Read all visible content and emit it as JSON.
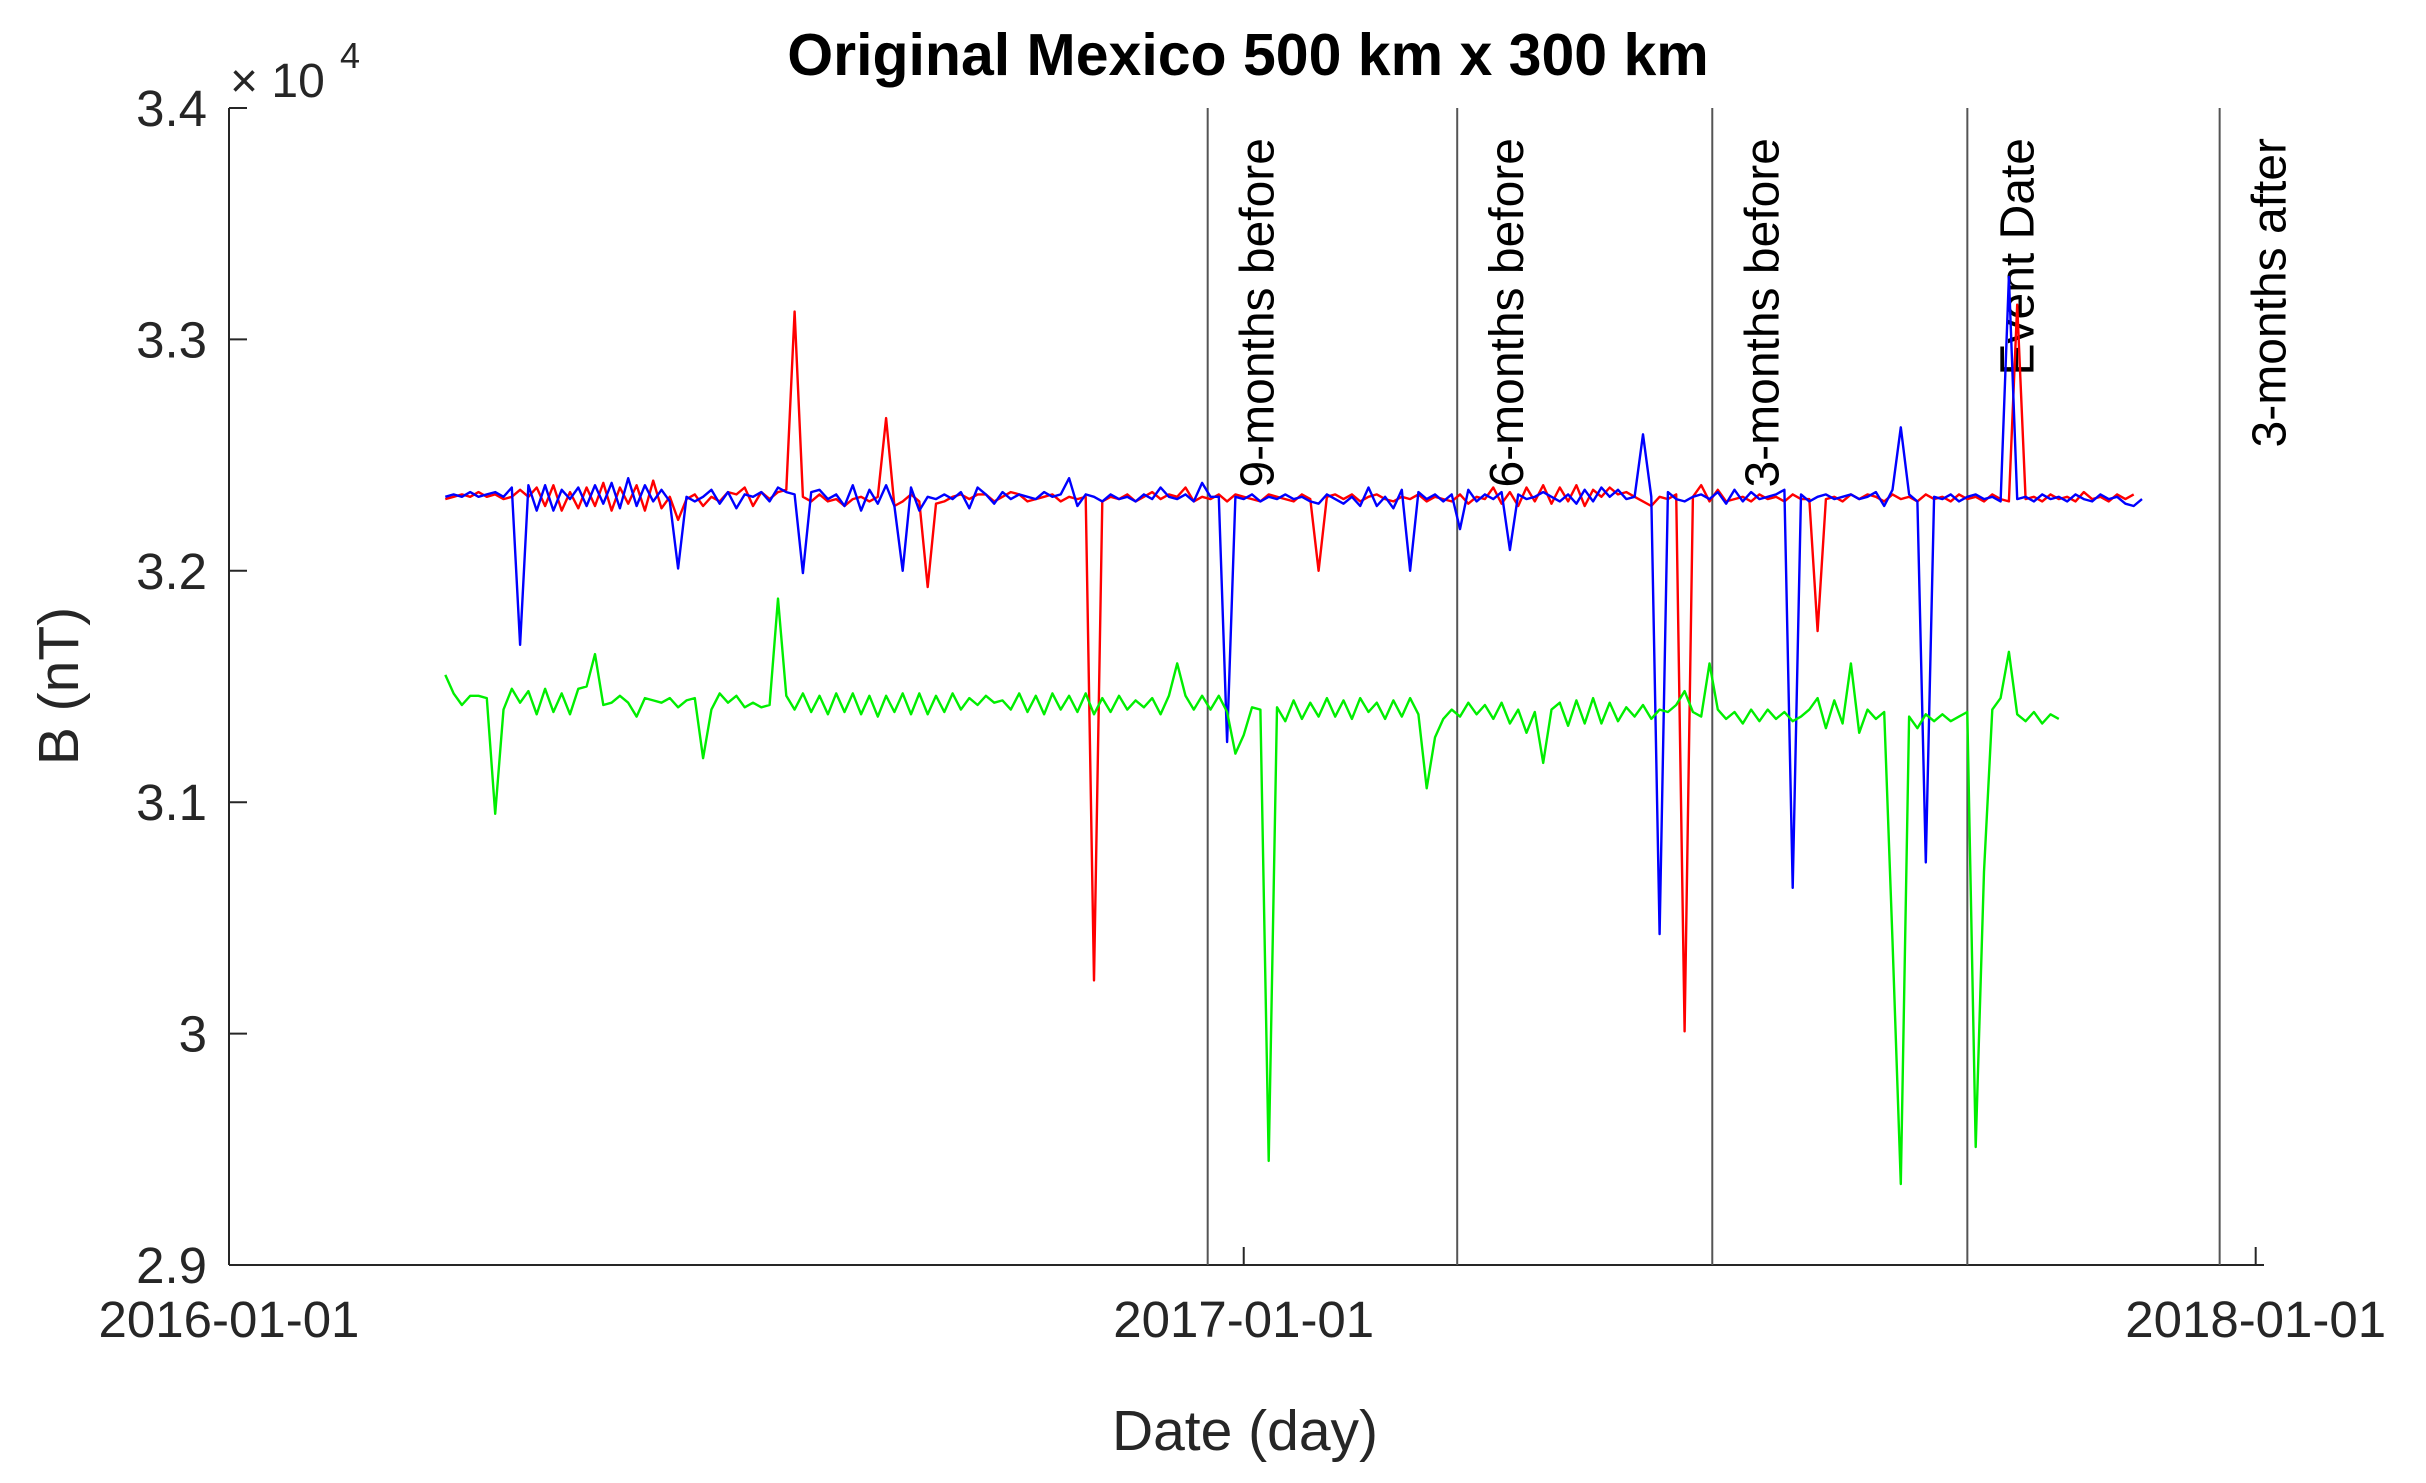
{
  "chart_data": {
    "type": "line",
    "title": "Original Mexico 500 km x 300 km",
    "xlabel": "Date (day)",
    "ylabel": "B (nT)",
    "y_multiplier_base": "× 10",
    "y_multiplier_exponent": "4",
    "xlim": [
      "2016-01-01",
      "2018-01-04"
    ],
    "ylim": [
      2.9,
      3.4
    ],
    "x_ticks": [
      "2016-01-01",
      "2017-01-01",
      "2018-01-01"
    ],
    "y_ticks": [
      2.9,
      3,
      3.1,
      3.2,
      3.3,
      3.4
    ],
    "y_tick_labels": [
      "2.9",
      "3",
      "3.1",
      "3.2",
      "3.3",
      "3.4"
    ],
    "grid": false,
    "event_lines": [
      {
        "date": "2016-12-19",
        "label": "9-months before"
      },
      {
        "date": "2017-03-19",
        "label": "6-months before"
      },
      {
        "date": "2017-06-19",
        "label": "3-months before"
      },
      {
        "date": "2017-09-19",
        "label": "Event Date"
      },
      {
        "date": "2017-12-19",
        "label": "3-months after"
      }
    ],
    "x_start": "2016-03-19",
    "x_step_days": 3,
    "series": [
      {
        "color": "#ff0000",
        "values": [
          3.231,
          3.232,
          3.233,
          3.232,
          3.234,
          3.232,
          3.233,
          3.231,
          3.232,
          3.235,
          3.232,
          3.236,
          3.228,
          3.237,
          3.226,
          3.234,
          3.227,
          3.236,
          3.228,
          3.238,
          3.226,
          3.236,
          3.229,
          3.237,
          3.226,
          3.239,
          3.227,
          3.232,
          3.222,
          3.231,
          3.233,
          3.228,
          3.232,
          3.23,
          3.234,
          3.233,
          3.236,
          3.228,
          3.234,
          3.231,
          3.234,
          3.235,
          3.312,
          3.232,
          3.23,
          3.233,
          3.23,
          3.231,
          3.228,
          3.231,
          3.232,
          3.23,
          3.232,
          3.266,
          3.228,
          3.23,
          3.233,
          3.23,
          3.193,
          3.229,
          3.23,
          3.232,
          3.233,
          3.231,
          3.233,
          3.233,
          3.23,
          3.232,
          3.234,
          3.233,
          3.23,
          3.231,
          3.232,
          3.233,
          3.23,
          3.232,
          3.231,
          3.232,
          3.023,
          3.23,
          3.232,
          3.231,
          3.233,
          3.23,
          3.232,
          3.234,
          3.231,
          3.233,
          3.232,
          3.236,
          3.23,
          3.232,
          3.231,
          3.233,
          3.23,
          3.233,
          3.232,
          3.231,
          3.23,
          3.233,
          3.232,
          3.231,
          3.23,
          3.233,
          3.231,
          3.2,
          3.232,
          3.233,
          3.231,
          3.233,
          3.23,
          3.232,
          3.233,
          3.231,
          3.23,
          3.232,
          3.231,
          3.233,
          3.23,
          3.232,
          3.231,
          3.23,
          3.233,
          3.229,
          3.232,
          3.231,
          3.236,
          3.229,
          3.234,
          3.228,
          3.236,
          3.23,
          3.237,
          3.229,
          3.236,
          3.23,
          3.237,
          3.228,
          3.235,
          3.232,
          3.236,
          3.233,
          3.234,
          3.232,
          3.23,
          3.228,
          3.232,
          3.231,
          3.233,
          3.001,
          3.232,
          3.237,
          3.23,
          3.235,
          3.23,
          3.231,
          3.232,
          3.23,
          3.233,
          3.231,
          3.232,
          3.23,
          3.233,
          3.231,
          3.231,
          3.174,
          3.231,
          3.232,
          3.23,
          3.233,
          3.231,
          3.233,
          3.232,
          3.23,
          3.233,
          3.231,
          3.232,
          3.23,
          3.233,
          3.231,
          3.232,
          3.23,
          3.233,
          3.231,
          3.232,
          3.23,
          3.233,
          3.231,
          3.23,
          3.315,
          3.231,
          3.232,
          3.23,
          3.233,
          3.231,
          3.232,
          3.23,
          3.234,
          3.231,
          3.232,
          3.23,
          3.233,
          3.231,
          3.233
        ]
      },
      {
        "color": "#0000ff",
        "values": [
          3.232,
          3.233,
          3.232,
          3.234,
          3.232,
          3.233,
          3.234,
          3.232,
          3.236,
          3.168,
          3.237,
          3.226,
          3.237,
          3.226,
          3.235,
          3.231,
          3.236,
          3.228,
          3.237,
          3.229,
          3.238,
          3.227,
          3.24,
          3.228,
          3.237,
          3.23,
          3.235,
          3.23,
          3.201,
          3.232,
          3.23,
          3.232,
          3.235,
          3.229,
          3.234,
          3.227,
          3.233,
          3.232,
          3.234,
          3.23,
          3.236,
          3.234,
          3.233,
          3.199,
          3.234,
          3.235,
          3.231,
          3.233,
          3.228,
          3.237,
          3.226,
          3.235,
          3.229,
          3.237,
          3.228,
          3.2,
          3.236,
          3.226,
          3.232,
          3.231,
          3.233,
          3.231,
          3.234,
          3.227,
          3.236,
          3.233,
          3.229,
          3.234,
          3.231,
          3.233,
          3.232,
          3.231,
          3.234,
          3.232,
          3.233,
          3.24,
          3.228,
          3.233,
          3.232,
          3.23,
          3.233,
          3.231,
          3.232,
          3.23,
          3.233,
          3.231,
          3.236,
          3.232,
          3.231,
          3.233,
          3.23,
          3.238,
          3.232,
          3.232,
          3.126,
          3.232,
          3.231,
          3.233,
          3.23,
          3.232,
          3.231,
          3.233,
          3.231,
          3.232,
          3.23,
          3.229,
          3.233,
          3.231,
          3.229,
          3.232,
          3.228,
          3.236,
          3.228,
          3.232,
          3.227,
          3.235,
          3.2,
          3.234,
          3.231,
          3.233,
          3.23,
          3.233,
          3.218,
          3.235,
          3.23,
          3.233,
          3.231,
          3.234,
          3.209,
          3.233,
          3.231,
          3.232,
          3.234,
          3.232,
          3.23,
          3.233,
          3.229,
          3.235,
          3.23,
          3.236,
          3.232,
          3.235,
          3.231,
          3.232,
          3.259,
          3.232,
          3.043,
          3.234,
          3.231,
          3.23,
          3.232,
          3.233,
          3.231,
          3.234,
          3.229,
          3.235,
          3.23,
          3.234,
          3.231,
          3.232,
          3.233,
          3.235,
          3.063,
          3.233,
          3.23,
          3.232,
          3.233,
          3.231,
          3.232,
          3.233,
          3.231,
          3.232,
          3.234,
          3.228,
          3.235,
          3.262,
          3.233,
          3.23,
          3.074,
          3.232,
          3.231,
          3.233,
          3.23,
          3.232,
          3.233,
          3.231,
          3.232,
          3.23,
          3.327,
          3.231,
          3.232,
          3.23,
          3.233,
          3.231,
          3.232,
          3.23,
          3.233,
          3.231,
          3.23,
          3.233,
          3.231,
          3.232,
          3.229,
          3.228,
          3.231
        ]
      },
      {
        "color": "#00ee00",
        "values": [
          3.155,
          3.147,
          3.142,
          3.146,
          3.146,
          3.145,
          3.095,
          3.14,
          3.149,
          3.143,
          3.148,
          3.138,
          3.149,
          3.139,
          3.147,
          3.138,
          3.149,
          3.15,
          3.164,
          3.142,
          3.143,
          3.146,
          3.143,
          3.137,
          3.145,
          3.144,
          3.143,
          3.145,
          3.141,
          3.144,
          3.145,
          3.119,
          3.14,
          3.147,
          3.143,
          3.146,
          3.141,
          3.143,
          3.141,
          3.142,
          3.188,
          3.146,
          3.14,
          3.147,
          3.139,
          3.146,
          3.138,
          3.147,
          3.139,
          3.147,
          3.138,
          3.146,
          3.137,
          3.146,
          3.139,
          3.147,
          3.138,
          3.147,
          3.138,
          3.146,
          3.139,
          3.147,
          3.14,
          3.145,
          3.142,
          3.146,
          3.143,
          3.144,
          3.14,
          3.147,
          3.139,
          3.146,
          3.138,
          3.147,
          3.14,
          3.146,
          3.139,
          3.147,
          3.138,
          3.145,
          3.139,
          3.146,
          3.14,
          3.144,
          3.141,
          3.145,
          3.138,
          3.146,
          3.16,
          3.146,
          3.14,
          3.146,
          3.14,
          3.146,
          3.139,
          3.121,
          3.129,
          3.141,
          3.14,
          2.945,
          3.141,
          3.135,
          3.144,
          3.136,
          3.143,
          3.137,
          3.145,
          3.137,
          3.144,
          3.136,
          3.145,
          3.139,
          3.143,
          3.136,
          3.144,
          3.137,
          3.145,
          3.138,
          3.106,
          3.128,
          3.136,
          3.14,
          3.137,
          3.143,
          3.138,
          3.142,
          3.136,
          3.143,
          3.134,
          3.14,
          3.13,
          3.139,
          3.117,
          3.14,
          3.143,
          3.133,
          3.144,
          3.134,
          3.145,
          3.134,
          3.143,
          3.135,
          3.141,
          3.137,
          3.142,
          3.136,
          3.14,
          3.139,
          3.142,
          3.148,
          3.139,
          3.137,
          3.16,
          3.14,
          3.136,
          3.139,
          3.134,
          3.14,
          3.135,
          3.14,
          3.136,
          3.139,
          3.135,
          3.137,
          3.14,
          3.145,
          3.132,
          3.144,
          3.134,
          3.16,
          3.13,
          3.14,
          3.136,
          3.139,
          3.04,
          2.935,
          3.137,
          3.132,
          3.138,
          3.135,
          3.138,
          3.135,
          3.137,
          3.139,
          2.951,
          3.07,
          3.14,
          3.145,
          3.165,
          3.138,
          3.135,
          3.139,
          3.134,
          3.138,
          3.136
        ]
      }
    ]
  }
}
